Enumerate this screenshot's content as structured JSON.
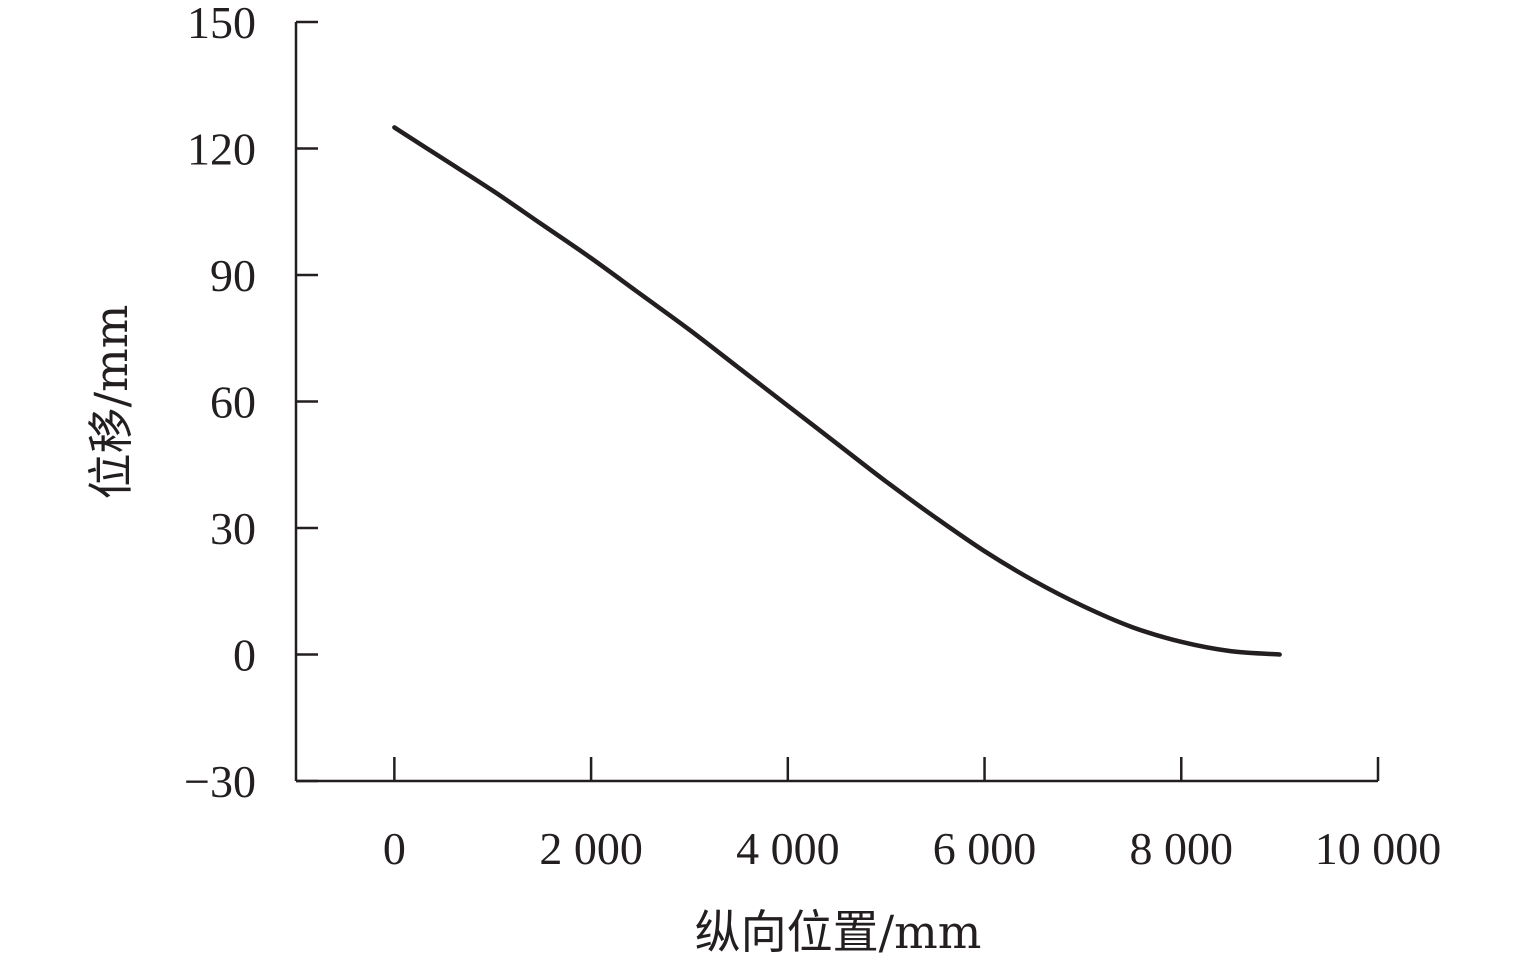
{
  "chart_data": {
    "type": "line",
    "title": "",
    "xlabel": "纵向位置/mm",
    "ylabel": "位移/mm",
    "xlim": [
      -1000,
      10000
    ],
    "ylim": [
      -30,
      150
    ],
    "x_ticks": [
      0,
      2000,
      4000,
      6000,
      8000,
      10000
    ],
    "x_tick_labels": [
      "0",
      "2 000",
      "4 000",
      "6 000",
      "8 000",
      "10 000"
    ],
    "y_ticks": [
      -30,
      0,
      30,
      60,
      90,
      120,
      150
    ],
    "y_tick_labels": [
      "−30",
      "0",
      "30",
      "60",
      "90",
      "120",
      "150"
    ],
    "grid": false,
    "legend": "none",
    "series": [
      {
        "color": "#231f20",
        "x": [
          0,
          500,
          1000,
          1500,
          2000,
          2500,
          3000,
          3500,
          4000,
          4500,
          5000,
          5500,
          6000,
          6500,
          7000,
          7500,
          8000,
          8500,
          9000
        ],
        "y": [
          125,
          117.5,
          110,
          102,
          94,
          85.5,
          77,
          68,
          59,
          50,
          41,
          32.5,
          24.5,
          17.5,
          11.5,
          6.5,
          3,
          0.8,
          0
        ]
      }
    ]
  }
}
